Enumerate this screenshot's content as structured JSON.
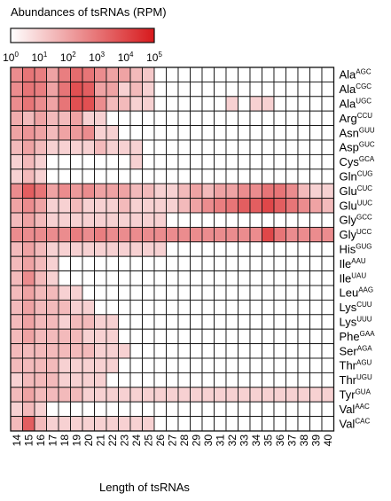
{
  "chart_data": {
    "type": "heatmap",
    "title": "Abundances of tsRNAs (RPM)",
    "xlabel": "Length of tsRNAs",
    "colorbar": {
      "scale": "log10",
      "range": [
        0,
        5
      ],
      "tick_labels": [
        {
          "base": "10",
          "exp": "0"
        },
        {
          "base": "10",
          "exp": "1"
        },
        {
          "base": "10",
          "exp": "2"
        },
        {
          "base": "10",
          "exp": "3"
        },
        {
          "base": "10",
          "exp": "4"
        },
        {
          "base": "10",
          "exp": "5"
        }
      ],
      "colors": [
        "#ffffff",
        "#d7191c"
      ]
    },
    "x": [
      "14",
      "15",
      "16",
      "17",
      "18",
      "19",
      "20",
      "21",
      "22",
      "23",
      "24",
      "25",
      "26",
      "27",
      "28",
      "29",
      "30",
      "31",
      "32",
      "33",
      "34",
      "35",
      "36",
      "37",
      "38",
      "39",
      "40"
    ],
    "rows": [
      {
        "aa": "Ala",
        "codon": "AGC"
      },
      {
        "aa": "Ala",
        "codon": "CGC"
      },
      {
        "aa": "Ala",
        "codon": "UGC"
      },
      {
        "aa": "Arg",
        "codon": "CCU"
      },
      {
        "aa": "Asn",
        "codon": "GUU"
      },
      {
        "aa": "Asp",
        "codon": "GUC"
      },
      {
        "aa": "Cys",
        "codon": "GCA"
      },
      {
        "aa": "Gln",
        "codon": "CUG"
      },
      {
        "aa": "Glu",
        "codon": "CUC"
      },
      {
        "aa": "Glu",
        "codon": "UUC"
      },
      {
        "aa": "Gly",
        "codon": "GCC"
      },
      {
        "aa": "Gly",
        "codon": "UCC"
      },
      {
        "aa": "His",
        "codon": "GUG"
      },
      {
        "aa": "Ile",
        "codon": "AAU"
      },
      {
        "aa": "Ile",
        "codon": "UAU"
      },
      {
        "aa": "Leu",
        "codon": "AAG"
      },
      {
        "aa": "Lys",
        "codon": "CUU"
      },
      {
        "aa": "Lys",
        "codon": "UUU"
      },
      {
        "aa": "Phe",
        "codon": "GAA"
      },
      {
        "aa": "Ser",
        "codon": "AGA"
      },
      {
        "aa": "Thr",
        "codon": "AGU"
      },
      {
        "aa": "Thr",
        "codon": "UGU"
      },
      {
        "aa": "Tyr",
        "codon": "GUA"
      },
      {
        "aa": "Val",
        "codon": "AAC"
      },
      {
        "aa": "Val",
        "codon": "CAC"
      }
    ],
    "values_log10": [
      [
        2.5,
        3.0,
        2.8,
        2.0,
        2.8,
        3.2,
        3.0,
        2.5,
        2.0,
        2.0,
        1.5,
        1.2,
        0,
        0,
        0,
        0,
        0,
        0,
        0,
        0,
        0,
        0,
        0,
        0,
        0,
        0,
        0
      ],
      [
        2.5,
        3.0,
        2.8,
        2.0,
        3.0,
        3.8,
        3.5,
        2.0,
        2.0,
        1.0,
        1.5,
        1.0,
        0,
        0,
        0,
        0,
        0,
        0,
        0,
        0,
        0,
        0,
        0,
        0,
        0,
        0,
        0
      ],
      [
        2.5,
        3.0,
        2.5,
        2.0,
        3.0,
        3.8,
        3.8,
        2.5,
        1.5,
        1.5,
        1.0,
        1.0,
        0,
        0,
        0,
        0,
        0,
        0,
        1.0,
        0,
        1.0,
        1.0,
        0,
        0,
        0,
        0,
        0
      ],
      [
        1.8,
        1.5,
        2.0,
        1.5,
        1.5,
        2.0,
        1.0,
        1.0,
        0,
        0,
        0,
        0,
        0,
        0,
        0,
        0,
        0,
        0,
        0,
        0,
        0,
        0,
        0,
        0,
        0,
        0,
        0
      ],
      [
        2.0,
        2.3,
        2.0,
        1.5,
        2.0,
        2.2,
        2.5,
        1.0,
        1.0,
        0,
        0,
        0,
        0,
        0,
        0,
        0,
        0,
        0,
        0,
        0,
        0,
        0,
        0,
        0,
        0,
        0,
        0
      ],
      [
        1.5,
        2.0,
        1.5,
        1.0,
        1.0,
        1.0,
        1.0,
        1.5,
        1.0,
        1.0,
        1.0,
        0,
        0,
        0,
        0,
        0,
        0,
        0,
        0,
        0,
        0,
        0,
        0,
        0,
        0,
        0,
        0
      ],
      [
        1.0,
        1.5,
        1.0,
        0,
        0,
        0,
        0,
        0,
        0,
        0,
        1.0,
        0,
        0,
        0,
        0,
        0,
        0,
        0,
        0,
        0,
        0,
        0,
        0,
        0,
        0,
        0,
        0
      ],
      [
        1.0,
        1.5,
        1.0,
        0,
        0,
        0,
        0,
        0,
        0,
        0,
        0,
        0,
        0,
        0,
        0,
        0,
        0,
        0,
        0,
        0,
        0,
        0,
        0,
        0,
        0,
        0,
        0
      ],
      [
        2.5,
        3.5,
        3.0,
        2.0,
        2.5,
        2.2,
        2.5,
        2.0,
        2.0,
        2.0,
        1.5,
        1.5,
        1.0,
        1.0,
        1.5,
        2.0,
        1.5,
        2.0,
        2.0,
        2.5,
        2.5,
        3.0,
        3.0,
        2.5,
        1.5,
        1.0,
        1.0
      ],
      [
        2.0,
        2.5,
        2.0,
        1.0,
        1.0,
        1.5,
        1.0,
        1.0,
        1.0,
        1.5,
        1.0,
        1.0,
        1.0,
        1.0,
        1.5,
        2.0,
        2.5,
        2.8,
        3.0,
        3.5,
        3.5,
        4.0,
        3.5,
        3.0,
        2.5,
        2.0,
        1.5
      ],
      [
        1.5,
        2.0,
        1.5,
        1.0,
        1.0,
        1.0,
        1.0,
        1.0,
        1.0,
        1.0,
        1.0,
        1.0,
        1.0,
        0,
        0,
        0,
        0,
        0,
        0,
        0,
        0,
        0,
        0,
        0,
        0,
        0,
        0
      ],
      [
        2.5,
        2.5,
        2.5,
        2.5,
        2.5,
        2.8,
        2.5,
        2.8,
        2.5,
        2.5,
        2.5,
        2.5,
        2.5,
        2.5,
        2.5,
        2.5,
        2.5,
        2.5,
        2.5,
        2.5,
        2.5,
        4.0,
        3.0,
        2.5,
        2.5,
        2.5,
        2.5
      ],
      [
        1.5,
        2.0,
        1.5,
        1.0,
        1.0,
        1.0,
        1.0,
        1.0,
        1.0,
        1.0,
        1.0,
        1.0,
        1.0,
        0,
        0,
        0,
        0,
        0,
        0,
        0,
        0,
        0,
        0,
        0,
        0,
        0,
        0
      ],
      [
        1.5,
        2.0,
        1.5,
        1.0,
        0,
        0,
        0,
        0,
        0,
        0,
        0,
        0,
        0,
        0,
        0,
        0,
        0,
        0,
        0,
        0,
        0,
        0,
        0,
        0,
        0,
        0,
        0
      ],
      [
        1.5,
        2.5,
        1.5,
        1.0,
        0,
        0,
        0,
        0,
        0,
        0,
        0,
        0,
        0,
        0,
        0,
        0,
        0,
        0,
        0,
        0,
        0,
        0,
        0,
        0,
        0,
        0,
        0
      ],
      [
        1.5,
        2.0,
        1.5,
        1.5,
        1.0,
        1.0,
        0,
        0,
        0,
        0,
        0,
        0,
        0,
        0,
        0,
        0,
        0,
        0,
        0,
        0,
        0,
        0,
        0,
        0,
        0,
        0,
        0
      ],
      [
        1.5,
        2.0,
        1.5,
        1.5,
        1.5,
        1.0,
        1.0,
        0,
        0,
        0,
        0,
        0,
        0,
        0,
        0,
        0,
        0,
        0,
        0,
        0,
        0,
        0,
        0,
        0,
        0,
        0,
        0
      ],
      [
        1.5,
        2.0,
        1.5,
        1.5,
        1.0,
        1.5,
        1.5,
        1.0,
        1.0,
        0,
        0,
        0,
        0,
        0,
        0,
        0,
        0,
        0,
        0,
        0,
        0,
        0,
        0,
        0,
        0,
        0,
        0
      ],
      [
        1.5,
        2.0,
        1.5,
        1.5,
        1.5,
        1.5,
        1.0,
        1.0,
        1.0,
        0,
        0,
        0,
        0,
        0,
        0,
        0,
        0,
        0,
        0,
        0,
        0,
        0,
        0,
        0,
        0,
        0,
        0
      ],
      [
        1.5,
        1.5,
        1.5,
        1.5,
        1.5,
        1.5,
        1.5,
        1.0,
        1.0,
        1.0,
        0,
        0,
        0,
        0,
        0,
        0,
        0,
        0,
        0,
        0,
        0,
        0,
        0,
        0,
        0,
        0,
        0
      ],
      [
        1.5,
        1.5,
        1.5,
        1.5,
        1.0,
        1.0,
        1.0,
        1.0,
        1.0,
        0,
        0,
        0,
        0,
        0,
        0,
        0,
        0,
        0,
        0,
        0,
        0,
        0,
        0,
        0,
        0,
        0,
        0
      ],
      [
        1.0,
        1.5,
        1.5,
        1.5,
        1.0,
        1.0,
        1.0,
        1.0,
        0,
        0,
        0,
        0,
        0,
        0,
        0,
        0,
        0,
        0,
        0,
        0,
        0,
        0,
        0,
        0,
        0,
        0,
        0
      ],
      [
        1.5,
        2.0,
        1.5,
        1.5,
        1.5,
        1.5,
        1.0,
        1.0,
        1.0,
        1.0,
        1.0,
        1.0,
        1.0,
        1.0,
        1.0,
        1.0,
        1.0,
        1.0,
        1.0,
        1.0,
        1.0,
        1.0,
        1.0,
        1.0,
        1.0,
        1.0,
        1.0
      ],
      [
        1.0,
        1.5,
        1.0,
        0,
        0,
        0,
        0,
        0,
        0,
        0,
        0,
        0,
        0,
        0,
        0,
        0,
        0,
        0,
        0,
        0,
        0,
        0,
        0,
        0,
        0,
        0,
        0
      ],
      [
        1.5,
        3.5,
        1.5,
        1.0,
        1.0,
        1.0,
        1.0,
        1.0,
        1.0,
        1.0,
        1.0,
        1.0,
        0,
        0,
        0,
        0,
        0,
        0,
        0,
        0,
        0,
        0,
        0,
        0,
        0,
        0,
        0
      ]
    ]
  }
}
